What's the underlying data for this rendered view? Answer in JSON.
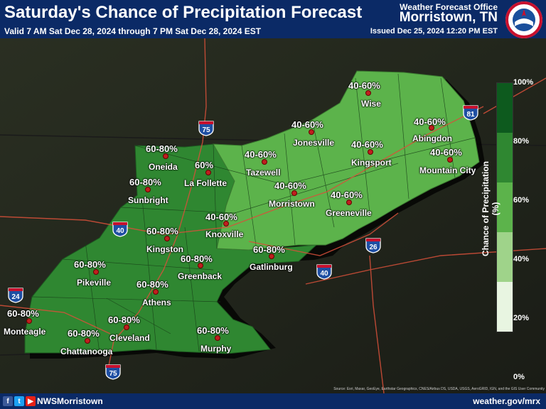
{
  "header": {
    "title": "Saturday's Chance of Precipitation Forecast",
    "valid": "Valid 7 AM Sat Dec 28, 2024 through 7 PM Sat Dec 28, 2024 EST",
    "office_label": "Weather Forecast Office",
    "office_city": "Morristown, TN",
    "issued": "Issued Dec 25, 2024 12:20 PM EST",
    "logo_text": "NATIONAL WEATHER SERVICE",
    "logo_icon": "noaa-nws-logo-icon"
  },
  "legend": {
    "title": "Chance of Precipitation (%)",
    "ticks": [
      "100%",
      "80%",
      "60%",
      "40%",
      "20%",
      "0%"
    ],
    "colors": [
      "#e8f5e1",
      "#9fd38a",
      "#5cb34b",
      "#2f8731",
      "#0d5a1e"
    ]
  },
  "cities": [
    {
      "name": "Wise",
      "pct": "40-60%"
    },
    {
      "name": "Jonesville",
      "pct": "40-60%"
    },
    {
      "name": "Abingdon",
      "pct": "40-60%"
    },
    {
      "name": "Oneida",
      "pct": "60-80%"
    },
    {
      "name": "La Follette",
      "pct": "60%"
    },
    {
      "name": "Tazewell",
      "pct": "40-60%"
    },
    {
      "name": "Kingsport",
      "pct": "40-60%"
    },
    {
      "name": "Mountain City",
      "pct": "40-60%"
    },
    {
      "name": "Sunbright",
      "pct": "60-80%"
    },
    {
      "name": "Morristown",
      "pct": "40-60%"
    },
    {
      "name": "Greeneville",
      "pct": "40-60%"
    },
    {
      "name": "Knoxville",
      "pct": "40-60%"
    },
    {
      "name": "Kingston",
      "pct": "60-80%"
    },
    {
      "name": "Gatlinburg",
      "pct": "60-80%"
    },
    {
      "name": "Greenback",
      "pct": "60-80%"
    },
    {
      "name": "Pikeville",
      "pct": "60-80%"
    },
    {
      "name": "Athens",
      "pct": "60-80%"
    },
    {
      "name": "Monteagle",
      "pct": "60-80%"
    },
    {
      "name": "Cleveland",
      "pct": "60-80%"
    },
    {
      "name": "Chattanooga",
      "pct": "60-80%"
    },
    {
      "name": "Murphy",
      "pct": "60-80%"
    }
  ],
  "interstates": [
    "75",
    "81",
    "40",
    "26",
    "40",
    "24",
    "75"
  ],
  "footer": {
    "handle": "NWSMorristown",
    "website": "weather.gov/mrx",
    "attribution": "Source: Esri, Maxar, GeoEye, Earthstar Geographics, CNES/Airbus DS, USDA, USGS, AeroGRID, IGN, and the GIS User Community",
    "social": [
      {
        "icon": "facebook-icon",
        "glyph": "f",
        "color": "#3b5998"
      },
      {
        "icon": "twitter-icon",
        "glyph": "t",
        "color": "#1da1f2"
      },
      {
        "icon": "youtube-icon",
        "glyph": "▶",
        "color": "#e62117"
      }
    ]
  }
}
